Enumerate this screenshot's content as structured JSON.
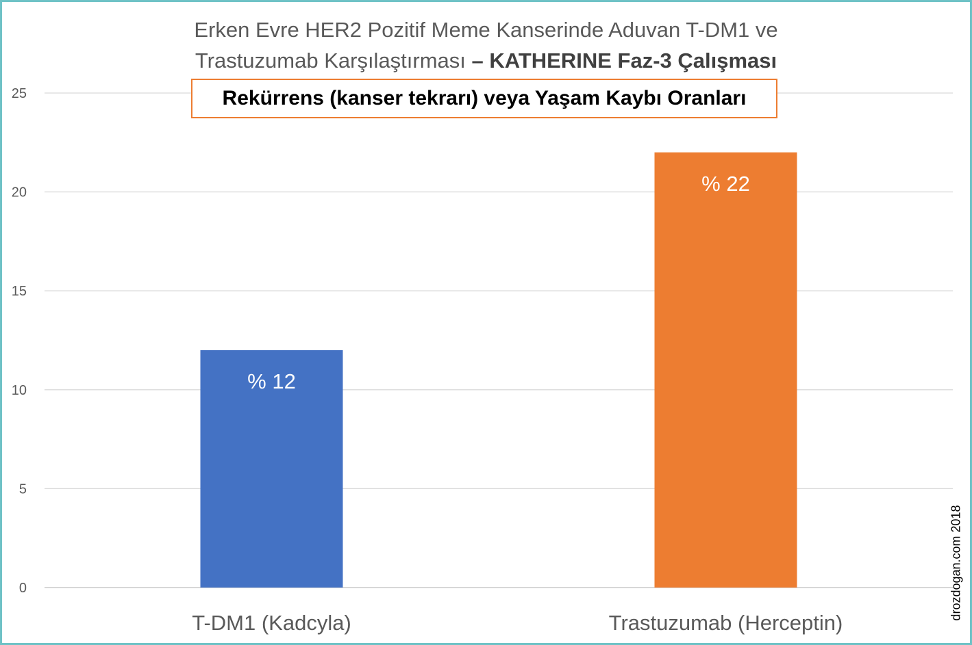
{
  "title": {
    "line1": "Erken Evre HER2 Pozitif Meme Kanserinde Aduvan T-DM1 ve",
    "line2_regular": "Trastuzumab Karşılaştırması ",
    "line2_bold": "– KATHERINE Faz-3 Çalışması"
  },
  "subtitle": "Rekürrens (kanser tekrarı) veya Yaşam Kaybı Oranları",
  "watermark": "drozdogan.com 2018",
  "chart_data": {
    "type": "bar",
    "title": "Erken Evre HER2 Pozitif Meme Kanserinde Aduvan T-DM1 ve Trastuzumab Karşılaştırması – KATHERINE Faz-3 Çalışması",
    "subtitle": "Rekürrens (kanser tekrarı) veya Yaşam Kaybı Oranları",
    "categories": [
      "T-DM1 (Kadcyla)",
      "Trastuzumab (Herceptin)"
    ],
    "values": [
      12,
      22
    ],
    "data_labels": [
      "% 12",
      "% 22"
    ],
    "colors": [
      "#4472c4",
      "#ed7d31"
    ],
    "ylim": [
      0,
      25
    ],
    "yticks": [
      "0",
      "5",
      "10",
      "15",
      "20",
      "25"
    ],
    "xlabel": "",
    "ylabel": "",
    "grid": true,
    "legend": "none"
  }
}
